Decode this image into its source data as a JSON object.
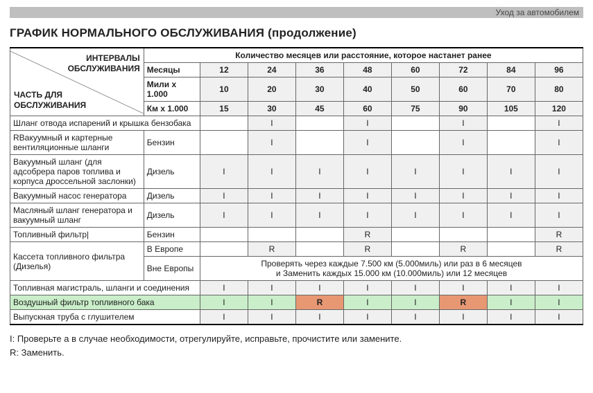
{
  "topbar": "Уход за автомобилем",
  "title": "ГРАФИК НОРМАЛЬНОГО ОБСЛУЖИВАНИЯ (продолжение)",
  "cornerTop": "ИНТЕРВАЛЫ ОБСЛУЖИВАНИЯ",
  "cornerBottom": "ЧАСТЬ ДЛЯ ОБСЛУЖИВАНИЯ",
  "intervalHeader": "Количество месяцев или расстояние, которое настанет ранее",
  "units": {
    "months": "Месяцы",
    "miles": "Мили x 1.000",
    "km": "Км x 1.000"
  },
  "monthVals": [
    "12",
    "24",
    "36",
    "48",
    "60",
    "72",
    "84",
    "96"
  ],
  "mileVals": [
    "10",
    "20",
    "30",
    "40",
    "50",
    "60",
    "70",
    "80"
  ],
  "kmVals": [
    "15",
    "30",
    "45",
    "60",
    "75",
    "90",
    "105",
    "120"
  ],
  "rows": [
    {
      "item": "Шланг отвода испарений и крышка бензобака",
      "fuel": "",
      "spanFuel": true,
      "vals": [
        "",
        "I",
        "",
        "I",
        "",
        "I",
        "",
        "I"
      ]
    },
    {
      "item": "RВакуумный и картерные вентиляционные шланги",
      "fuel": "Бензин",
      "vals": [
        "",
        "I",
        "",
        "I",
        "",
        "I",
        "",
        "I"
      ]
    },
    {
      "item": "Вакуумный шланг (для адсобрера паров топлива и корпуса дроссельной заслонки)",
      "fuel": "Дизель",
      "vals": [
        "I",
        "I",
        "I",
        "I",
        "I",
        "I",
        "I",
        "I"
      ]
    },
    {
      "item": "Вакуумный насос генератора",
      "fuel": "Дизель",
      "vals": [
        "I",
        "I",
        "I",
        "I",
        "I",
        "I",
        "I",
        "I"
      ]
    },
    {
      "item": "Масляный шланг генератора и вакуумный шланг",
      "fuel": "Дизель",
      "vals": [
        "I",
        "I",
        "I",
        "I",
        "I",
        "I",
        "I",
        "I"
      ]
    },
    {
      "item": "Топливный фильтр|",
      "fuel": "Бензин",
      "vals": [
        "",
        "",
        "",
        "R",
        "",
        "",
        "",
        "R"
      ]
    },
    {
      "groupItem": "Кассета топливного фильтра (Дизелья)",
      "fuel": "В Европе",
      "vals": [
        "",
        "R",
        "",
        "R",
        "",
        "R",
        "",
        "R"
      ],
      "groupRows": 2
    },
    {
      "fuel": "Вне Европы",
      "noteSpan": true,
      "note1": "Проверять через каждые 7.500 км (5.000миль) или раз в 6 месяцев",
      "note2": "и Заменить каждых 15.000 км (10.000миль) или 12 месяцев"
    },
    {
      "item": "Топливная магистраль, шланги и соединения",
      "fuel": "",
      "spanFuel": true,
      "vals": [
        "I",
        "I",
        "I",
        "I",
        "I",
        "I",
        "I",
        "I"
      ]
    },
    {
      "item": "Воздушный фильтр топливного бака",
      "fuel": "",
      "spanFuel": true,
      "green": true,
      "vals": [
        "I",
        "I",
        "R",
        "I",
        "I",
        "R",
        "I",
        "I"
      ],
      "redIdx": [
        2,
        5
      ]
    },
    {
      "item": "Выпускная труба с глушителем",
      "fuel": "",
      "spanFuel": true,
      "vals": [
        "I",
        "I",
        "I",
        "I",
        "I",
        "I",
        "I",
        "I"
      ]
    }
  ],
  "legend": {
    "I": "I: Проверьте а в случае необходимости, отрегулируйте, исправьте, прочистите или замените.",
    "R": "R: Заменить."
  }
}
